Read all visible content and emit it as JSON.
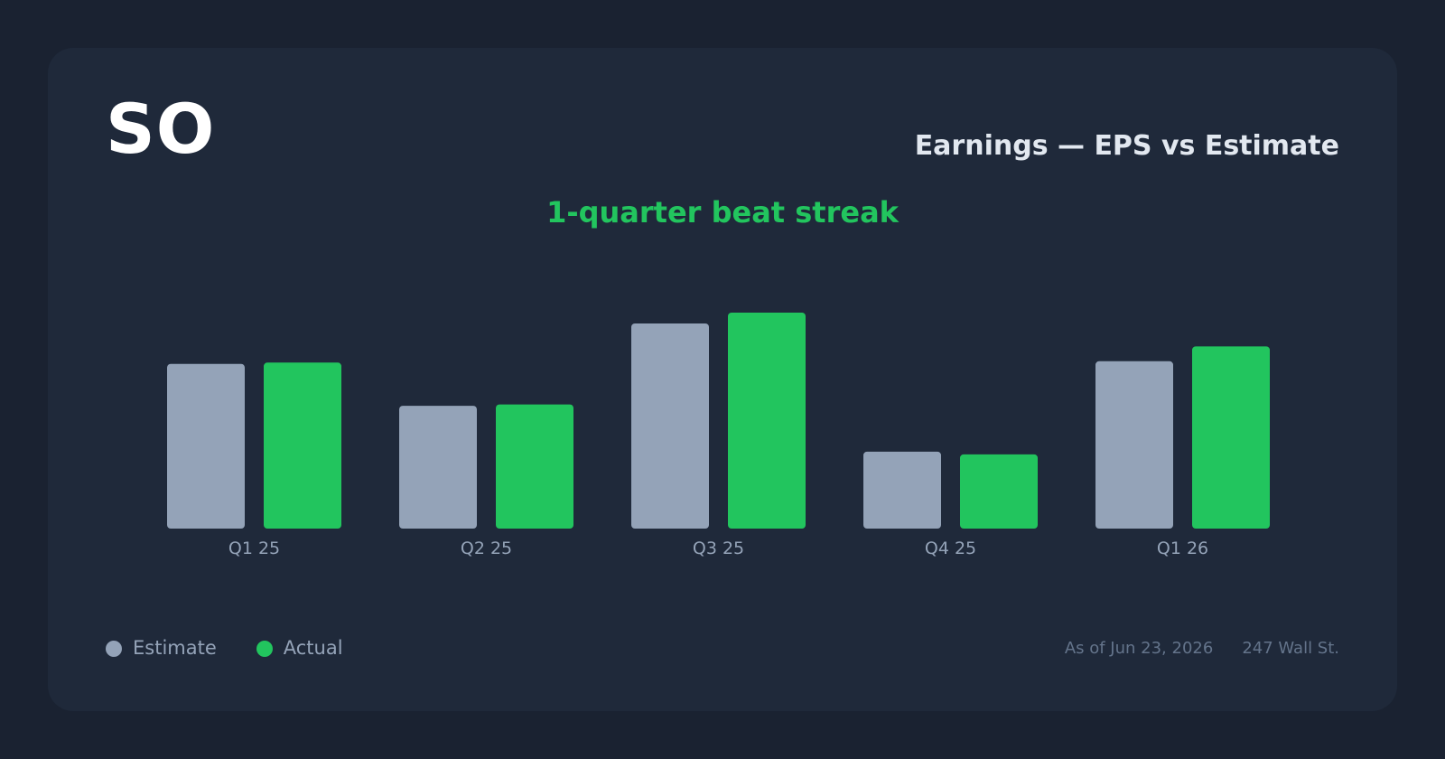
{
  "header": {
    "ticker": "SO",
    "title": "Earnings — EPS vs Estimate",
    "streak": "1-quarter beat streak"
  },
  "legend": {
    "estimate_label": "Estimate",
    "actual_label": "Actual"
  },
  "footer": {
    "as_of": "As of Jun 23, 2026",
    "source": "247 Wall St."
  },
  "colors": {
    "estimate": "#94a3b8",
    "actual": "#22c55e",
    "tick_label": "#94a3b8"
  },
  "chart_data": {
    "type": "bar",
    "categories": [
      "Q1 25",
      "Q2 25",
      "Q3 25",
      "Q4 25",
      "Q1 26"
    ],
    "series": [
      {
        "name": "Estimate",
        "values": [
          1.22,
          0.91,
          1.52,
          0.57,
          1.24
        ]
      },
      {
        "name": "Actual",
        "values": [
          1.23,
          0.92,
          1.6,
          0.55,
          1.35
        ]
      }
    ],
    "ylim": [
      0,
      1.6
    ]
  }
}
